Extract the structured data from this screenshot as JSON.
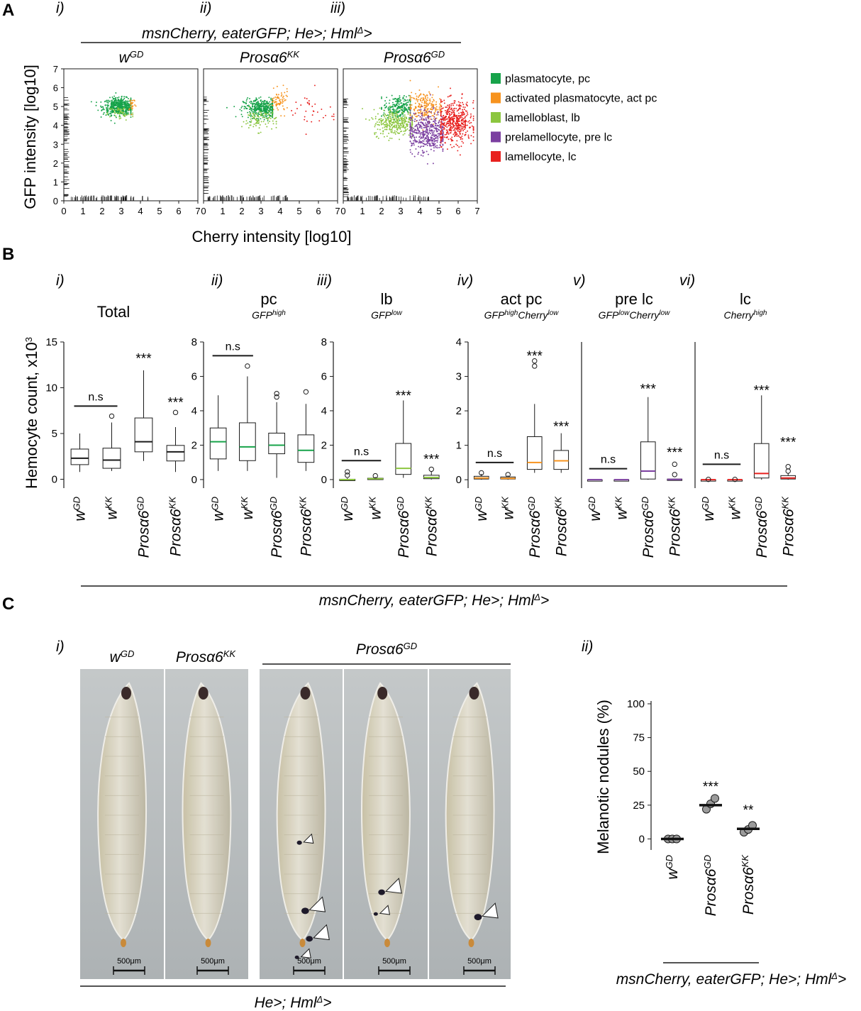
{
  "panels": {
    "A": "A",
    "B": "B",
    "C": "C"
  },
  "panel_a": {
    "roman": [
      "i)",
      "ii)",
      "iii)"
    ],
    "genotype_line": "msnCherry, eaterGFP; He>; Hml",
    "genotype_sup": "Δ",
    "genotype_end": ">",
    "titles": [
      {
        "base": "w",
        "sup": "GD"
      },
      {
        "base": "Prosα6",
        "sup": "KK"
      },
      {
        "base": "Prosα6",
        "sup": "GD"
      }
    ],
    "ylabel": "GFP intensity [log10]",
    "xlabel": "Cherry intensity [log10]",
    "legend": [
      {
        "label": "plasmatocyte, pc",
        "color": "#17a34a"
      },
      {
        "label": "activated plasmatocyte, act pc",
        "color": "#f7931e"
      },
      {
        "label": "lamelloblast, lb",
        "color": "#8cc63f"
      },
      {
        "label": "prelamellocyte, pre lc",
        "color": "#7b3fa0"
      },
      {
        "label": "lamellocyte, lc",
        "color": "#e8211f"
      }
    ]
  },
  "panel_b": {
    "roman": [
      "i)",
      "ii)",
      "iii)",
      "iv)",
      "v)",
      "vi)"
    ],
    "ylabel": "Hemocyte count, x10",
    "ylabel_sup": "3",
    "genotype_line": "msnCherry, eaterGFP; He>; Hml",
    "genotype_sup": "Δ",
    "genotype_end": ">",
    "categories": [
      {
        "base": "w",
        "sup": "GD"
      },
      {
        "base": "w",
        "sup": "KK"
      },
      {
        "base": "Prosα6",
        "sup": "GD"
      },
      {
        "base": "Prosα6",
        "sup": "KK"
      }
    ],
    "groups": [
      {
        "title": "Total",
        "sub": []
      },
      {
        "title": "pc",
        "sub": [
          {
            "t": "GFP",
            "s": "high"
          }
        ]
      },
      {
        "title": "lb",
        "sub": [
          {
            "t": "GFP",
            "s": "low"
          }
        ]
      },
      {
        "title": "act pc",
        "sub": [
          {
            "t": "GFP",
            "s": "high"
          },
          {
            "t": "Cherry",
            "s": "low"
          }
        ]
      },
      {
        "title": "pre lc",
        "sub": [
          {
            "t": "GFP",
            "s": "low"
          },
          {
            "t": "Cherry",
            "s": "low"
          }
        ]
      },
      {
        "title": "lc",
        "sub": [
          {
            "t": "Cherry",
            "s": "high"
          }
        ]
      }
    ],
    "ns": "n.s",
    "sig3": "***"
  },
  "panel_c": {
    "roman": [
      "i)",
      "ii)"
    ],
    "photo_titles": [
      {
        "base": "w",
        "sup": "GD"
      },
      {
        "base": "Prosα6",
        "sup": "KK"
      },
      {
        "base": "Prosα6",
        "sup": "GD"
      }
    ],
    "scale_label": "500μm",
    "bottom_line": "He>; Hml",
    "bottom_sup": "Δ",
    "bottom_end": ">",
    "ylabel": "Melanotic nodules (%)",
    "genotype_line": "msnCherry, eaterGFP; He>; Hml",
    "genotype_sup": "Δ",
    "genotype_end": ">",
    "categories": [
      {
        "base": "w",
        "sup": "GD"
      },
      {
        "base": "Prosα6",
        "sup": "GD"
      },
      {
        "base": "Prosα6",
        "sup": "KK"
      }
    ],
    "sig": [
      "",
      "***",
      "**"
    ]
  },
  "chart_data": [
    {
      "type": "scatter",
      "title": "w GD",
      "xlabel": "Cherry intensity [log10]",
      "ylabel": "GFP intensity [log10]",
      "xlim": [
        0,
        7
      ],
      "ylim": [
        0,
        7
      ],
      "xticks": [
        0,
        1,
        2,
        3,
        4,
        5,
        6,
        7
      ],
      "yticks": [
        0,
        1,
        2,
        3,
        4,
        5,
        6,
        7
      ],
      "clusters": [
        {
          "name": "plasmatocyte, pc",
          "color": "#17a34a",
          "n": 520,
          "cx": 2.9,
          "cy": 5.0,
          "sx": 0.42,
          "sy": 0.22,
          "xmin": 0.8,
          "xmax": 3.5
        },
        {
          "name": "lamelloblast, lb",
          "color": "#8cc63f",
          "n": 50,
          "cx": 3.0,
          "cy": 4.65,
          "sx": 0.35,
          "sy": 0.2,
          "xmin": 2.0,
          "xmax": 3.6
        },
        {
          "name": "activated plasmatocyte, act pc",
          "color": "#f7931e",
          "n": 25,
          "cx": 3.55,
          "cy": 5.15,
          "sx": 0.1,
          "sy": 0.2,
          "xmin": 3.4,
          "xmax": 3.8
        }
      ]
    },
    {
      "type": "scatter",
      "title": "Prosα6 KK",
      "xlabel": "Cherry intensity [log10]",
      "ylabel": "GFP intensity [log10]",
      "xlim": [
        0,
        7
      ],
      "ylim": [
        0,
        7
      ],
      "xticks": [
        0,
        1,
        2,
        3,
        4,
        5,
        6,
        7
      ],
      "yticks": [
        0,
        1,
        2,
        3,
        4,
        5,
        6,
        7
      ],
      "clusters": [
        {
          "name": "plasmatocyte, pc",
          "color": "#17a34a",
          "n": 420,
          "cx": 3.1,
          "cy": 4.9,
          "sx": 0.5,
          "sy": 0.25,
          "xmin": 0.6,
          "xmax": 3.6
        },
        {
          "name": "lamelloblast, lb",
          "color": "#8cc63f",
          "n": 90,
          "cx": 2.9,
          "cy": 4.3,
          "sx": 0.45,
          "sy": 0.3,
          "xmin": 1.5,
          "xmax": 3.8
        },
        {
          "name": "activated plasmatocyte, act pc",
          "color": "#f7931e",
          "n": 70,
          "cx": 3.95,
          "cy": 5.25,
          "sx": 0.25,
          "sy": 0.3,
          "xmin": 3.6,
          "xmax": 4.6
        },
        {
          "name": "lamellocyte, lc",
          "color": "#e8211f",
          "n": 35,
          "cx": 5.6,
          "cy": 4.7,
          "sx": 0.7,
          "sy": 0.55,
          "xmin": 4.2,
          "xmax": 6.8
        }
      ]
    },
    {
      "type": "scatter",
      "title": "Prosα6 GD",
      "xlabel": "Cherry intensity [log10]",
      "ylabel": "GFP intensity [log10]",
      "xlim": [
        0,
        7
      ],
      "ylim": [
        0,
        7
      ],
      "xticks": [
        0,
        1,
        2,
        3,
        4,
        5,
        6,
        7
      ],
      "yticks": [
        0,
        1,
        2,
        3,
        4,
        5,
        6,
        7
      ],
      "clusters": [
        {
          "name": "plasmatocyte, pc",
          "color": "#17a34a",
          "n": 230,
          "cx": 2.9,
          "cy": 4.95,
          "sx": 0.4,
          "sy": 0.3,
          "xmin": 2.0,
          "xmax": 3.5
        },
        {
          "name": "lamelloblast, lb",
          "color": "#8cc63f",
          "n": 320,
          "cx": 2.75,
          "cy": 4.15,
          "sx": 0.6,
          "sy": 0.35,
          "xmin": 1.0,
          "xmax": 3.6
        },
        {
          "name": "activated plasmatocyte, act pc",
          "color": "#f7931e",
          "n": 230,
          "cx": 4.25,
          "cy": 4.95,
          "sx": 0.45,
          "sy": 0.4,
          "xmin": 3.5,
          "xmax": 5.1
        },
        {
          "name": "prelamellocyte, pre lc",
          "color": "#7b3fa0",
          "n": 480,
          "cx": 4.35,
          "cy": 3.65,
          "sx": 0.55,
          "sy": 0.55,
          "xmin": 3.5,
          "xmax": 5.2
        },
        {
          "name": "lamellocyte, lc",
          "color": "#e8211f",
          "n": 500,
          "cx": 5.8,
          "cy": 4.15,
          "sx": 0.5,
          "sy": 0.55,
          "xmin": 5.1,
          "xmax": 6.8
        }
      ]
    },
    {
      "type": "box",
      "title": "Total",
      "ylabel": "Hemocyte count, x10^3",
      "ylim": [
        -0.5,
        15
      ],
      "yticks": [
        0,
        5,
        10,
        15
      ],
      "categories": [
        "wGD",
        "wKK",
        "Prosα6GD",
        "Prosα6KK"
      ],
      "median_color": "#1a1a1a",
      "boxes": [
        {
          "min": 0.8,
          "q1": 1.6,
          "median": 2.3,
          "q3": 3.3,
          "max": 5.0,
          "outliers": []
        },
        {
          "min": 0.9,
          "q1": 1.2,
          "median": 2.1,
          "q3": 3.4,
          "max": 6.2,
          "outliers": [
            6.9
          ]
        },
        {
          "min": 2.0,
          "q1": 3.0,
          "median": 4.1,
          "q3": 6.7,
          "max": 11.9,
          "outliers": []
        },
        {
          "min": 0.8,
          "q1": 2.0,
          "median": 3.0,
          "q3": 3.7,
          "max": 5.7,
          "outliers": [
            7.3
          ]
        }
      ],
      "annotations": [
        {
          "text": "n.s",
          "between": [
            0,
            1
          ],
          "y": 8.0
        },
        {
          "text": "***",
          "at": 2,
          "y": 13.8
        },
        {
          "text": "***",
          "at": 3,
          "y": 9.0
        }
      ]
    },
    {
      "type": "box",
      "title": "pc",
      "ylim": [
        -0.25,
        8
      ],
      "yticks": [
        0,
        2,
        4,
        6,
        8
      ],
      "categories": [
        "wGD",
        "wKK",
        "Prosα6GD",
        "Prosα6KK"
      ],
      "median_color": "#17a34a",
      "boxes": [
        {
          "min": 0.5,
          "q1": 1.2,
          "median": 2.2,
          "q3": 3.0,
          "max": 4.9,
          "outliers": []
        },
        {
          "min": 0.5,
          "q1": 1.1,
          "median": 1.9,
          "q3": 3.3,
          "max": 6.0,
          "outliers": [
            6.6
          ]
        },
        {
          "min": 0.1,
          "q1": 1.5,
          "median": 2.0,
          "q3": 2.7,
          "max": 4.5,
          "outliers": [
            4.8,
            5.0
          ]
        },
        {
          "min": 0.5,
          "q1": 1.0,
          "median": 1.7,
          "q3": 2.6,
          "max": 4.4,
          "outliers": [
            5.1
          ]
        }
      ],
      "annotations": [
        {
          "text": "n.s",
          "between": [
            0,
            1
          ],
          "y": 7.2
        }
      ]
    },
    {
      "type": "box",
      "title": "lb",
      "ylim": [
        -0.25,
        8
      ],
      "yticks": [
        0,
        2,
        4,
        6,
        8
      ],
      "categories": [
        "wGD",
        "wKK",
        "Prosα6GD",
        "Prosα6KK"
      ],
      "median_color": "#8cc63f",
      "boxes": [
        {
          "min": 0.0,
          "q1": 0.0,
          "median": 0.0,
          "q3": 0.02,
          "max": 0.08,
          "outliers": [
            0.25,
            0.45
          ]
        },
        {
          "min": 0.0,
          "q1": 0.02,
          "median": 0.05,
          "q3": 0.08,
          "max": 0.15,
          "outliers": [
            0.22
          ]
        },
        {
          "min": 0.1,
          "q1": 0.3,
          "median": 0.65,
          "q3": 2.1,
          "max": 4.6,
          "outliers": []
        },
        {
          "min": 0.0,
          "q1": 0.05,
          "median": 0.12,
          "q3": 0.25,
          "max": 0.45,
          "outliers": [
            0.6
          ]
        }
      ],
      "annotations": [
        {
          "text": "n.s",
          "between": [
            0,
            1
          ],
          "y": 1.1
        },
        {
          "text": "***",
          "at": 2,
          "y": 5.2
        },
        {
          "text": "***",
          "at": 3,
          "y": 1.5
        }
      ]
    },
    {
      "type": "box",
      "title": "act pc",
      "ylim": [
        -0.12,
        4
      ],
      "yticks": [
        0,
        1,
        2,
        3,
        4
      ],
      "categories": [
        "wGD",
        "wKK",
        "Prosα6GD",
        "Prosα6KK"
      ],
      "median_color": "#f7931e",
      "boxes": [
        {
          "min": 0.0,
          "q1": 0.02,
          "median": 0.05,
          "q3": 0.1,
          "max": 0.17,
          "outliers": [
            0.2
          ]
        },
        {
          "min": 0.0,
          "q1": 0.02,
          "median": 0.04,
          "q3": 0.08,
          "max": 0.13,
          "outliers": [
            0.15
          ]
        },
        {
          "min": 0.2,
          "q1": 0.3,
          "median": 0.5,
          "q3": 1.25,
          "max": 2.2,
          "outliers": [
            3.3,
            3.45
          ]
        },
        {
          "min": 0.2,
          "q1": 0.3,
          "median": 0.55,
          "q3": 0.85,
          "max": 1.35,
          "outliers": []
        }
      ],
      "annotations": [
        {
          "text": "n.s",
          "between": [
            0,
            1
          ],
          "y": 0.5
        },
        {
          "text": "***",
          "at": 2,
          "y": 3.75
        },
        {
          "text": "***",
          "at": 3,
          "y": 1.7
        }
      ]
    },
    {
      "type": "box",
      "title": "pre lc",
      "ylim": [
        -0.12,
        4
      ],
      "yticks": [],
      "categories": [
        "wGD",
        "wKK",
        "Prosα6GD",
        "Prosα6KK"
      ],
      "median_color": "#7b3fa0",
      "boxes": [
        {
          "min": 0.0,
          "q1": 0.0,
          "median": 0.0,
          "q3": 0.0,
          "max": 0.0,
          "outliers": []
        },
        {
          "min": 0.0,
          "q1": 0.0,
          "median": 0.0,
          "q3": 0.0,
          "max": 0.0,
          "outliers": []
        },
        {
          "min": 0.0,
          "q1": 0.02,
          "median": 0.25,
          "q3": 1.1,
          "max": 2.4,
          "outliers": []
        },
        {
          "min": 0.0,
          "q1": 0.0,
          "median": 0.01,
          "q3": 0.02,
          "max": 0.03,
          "outliers": [
            0.15,
            0.45
          ]
        }
      ],
      "annotations": [
        {
          "text": "n.s",
          "between": [
            0,
            1
          ],
          "y": 0.32
        },
        {
          "text": "***",
          "at": 2,
          "y": 2.8
        },
        {
          "text": "***",
          "at": 3,
          "y": 0.95
        }
      ]
    },
    {
      "type": "box",
      "title": "lc",
      "ylim": [
        -0.12,
        4
      ],
      "yticks": [],
      "categories": [
        "wGD",
        "wKK",
        "Prosα6GD",
        "Prosα6KK"
      ],
      "median_color": "#e8211f",
      "boxes": [
        {
          "min": 0.0,
          "q1": 0.0,
          "median": 0.0,
          "q3": 0.0,
          "max": 0.0,
          "outliers": [
            0.01
          ]
        },
        {
          "min": 0.0,
          "q1": 0.0,
          "median": 0.0,
          "q3": 0.0,
          "max": 0.0,
          "outliers": [
            0.01
          ]
        },
        {
          "min": 0.0,
          "q1": 0.05,
          "median": 0.18,
          "q3": 1.05,
          "max": 2.45,
          "outliers": []
        },
        {
          "min": 0.0,
          "q1": 0.02,
          "median": 0.05,
          "q3": 0.12,
          "max": 0.2,
          "outliers": [
            0.25,
            0.38
          ]
        }
      ],
      "annotations": [
        {
          "text": "n.s",
          "between": [
            0,
            1
          ],
          "y": 0.45
        },
        {
          "text": "***",
          "at": 2,
          "y": 2.75
        },
        {
          "text": "***",
          "at": 3,
          "y": 1.25
        }
      ]
    },
    {
      "type": "scatter",
      "title": "Melanotic nodules (%)",
      "ylabel": "Melanotic nodules (%)",
      "ylim": [
        -5,
        100
      ],
      "yticks": [
        0,
        25,
        50,
        75,
        100
      ],
      "categories": [
        "wGD",
        "Prosα6GD",
        "Prosα6KK"
      ],
      "points": [
        [
          0,
          0,
          0
        ],
        [
          22,
          26,
          30
        ],
        [
          5,
          7,
          10
        ]
      ],
      "means": [
        0,
        25,
        7.5
      ],
      "annotations": [
        "",
        "***",
        "**"
      ]
    }
  ]
}
